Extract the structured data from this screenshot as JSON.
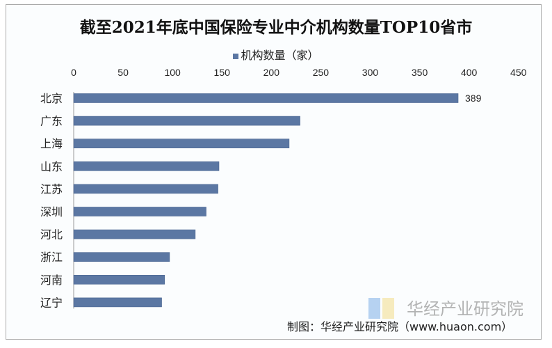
{
  "chart_data": {
    "type": "bar",
    "orientation": "horizontal",
    "title": "截至2021年底中国保险专业中介机构数量TOP10省市",
    "categories": [
      "北京",
      "广东",
      "上海",
      "山东",
      "江苏",
      "深圳",
      "河北",
      "浙江",
      "河南",
      "辽宁"
    ],
    "series": [
      {
        "name": "机构数量（家）",
        "values": [
          389,
          229,
          218,
          147,
          146,
          134,
          123,
          97,
          92,
          89
        ],
        "color": "#5b77a3"
      }
    ],
    "data_labels": {
      "北京": "389"
    },
    "xlim": [
      0,
      450
    ],
    "xticks": [
      "0",
      "50",
      "100",
      "150",
      "200",
      "250",
      "300",
      "350",
      "400",
      "450"
    ],
    "xaxis_position": "top",
    "grid": false,
    "legend_position": "top"
  },
  "footer": {
    "source": "制图：华经产业研究院（www.huaon.com）"
  },
  "watermark": {
    "text": "华经产业研究院"
  }
}
